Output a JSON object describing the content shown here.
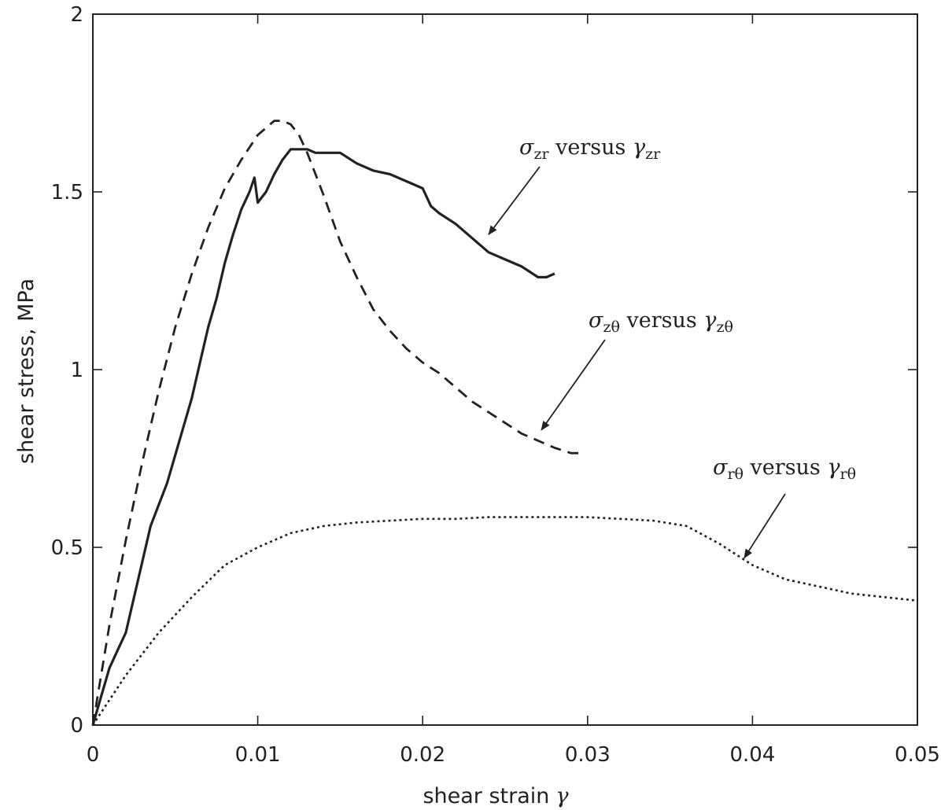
{
  "chart_data": {
    "type": "line",
    "title": "",
    "xlabel": "shear strain",
    "xlabel_symbol": "γ",
    "ylabel": "shear stress, MPa",
    "xlim": [
      0,
      0.05
    ],
    "ylim": [
      0,
      2
    ],
    "x_ticks": [
      0,
      0.01,
      0.02,
      0.03,
      0.04,
      0.05
    ],
    "y_ticks": [
      0,
      0.5,
      1,
      1.5,
      2
    ],
    "x_tick_labels": [
      "0",
      "0.01",
      "0.02",
      "0.03",
      "0.04",
      "0.05"
    ],
    "y_tick_labels": [
      "0",
      "0.5",
      "1",
      "1.5",
      "2"
    ],
    "grid": false,
    "legend": "none",
    "series": [
      {
        "name": "σzr versus γzr",
        "style": "solid",
        "color": "#222222",
        "x": [
          0,
          0.0005,
          0.001,
          0.0015,
          0.002,
          0.0025,
          0.003,
          0.0035,
          0.004,
          0.0045,
          0.005,
          0.0055,
          0.006,
          0.0065,
          0.007,
          0.0075,
          0.008,
          0.0085,
          0.009,
          0.0095,
          0.0098,
          0.01,
          0.0105,
          0.011,
          0.0115,
          0.012,
          0.0125,
          0.013,
          0.0135,
          0.014,
          0.015,
          0.016,
          0.017,
          0.018,
          0.019,
          0.02,
          0.0205,
          0.021,
          0.022,
          0.023,
          0.024,
          0.025,
          0.026,
          0.027,
          0.0275,
          0.028
        ],
        "y": [
          0,
          0.08,
          0.16,
          0.21,
          0.26,
          0.36,
          0.46,
          0.56,
          0.62,
          0.68,
          0.76,
          0.84,
          0.92,
          1.02,
          1.12,
          1.2,
          1.3,
          1.38,
          1.45,
          1.5,
          1.54,
          1.47,
          1.5,
          1.55,
          1.59,
          1.62,
          1.62,
          1.62,
          1.61,
          1.61,
          1.61,
          1.58,
          1.56,
          1.55,
          1.53,
          1.51,
          1.46,
          1.44,
          1.41,
          1.37,
          1.33,
          1.31,
          1.29,
          1.26,
          1.26,
          1.27
        ]
      },
      {
        "name": "σzθ versus γzθ",
        "style": "dashed",
        "color": "#222222",
        "x": [
          0,
          0.001,
          0.002,
          0.003,
          0.004,
          0.005,
          0.006,
          0.007,
          0.008,
          0.009,
          0.01,
          0.011,
          0.0115,
          0.012,
          0.0125,
          0.013,
          0.014,
          0.015,
          0.016,
          0.017,
          0.018,
          0.019,
          0.02,
          0.021,
          0.022,
          0.023,
          0.024,
          0.025,
          0.026,
          0.027,
          0.028,
          0.029,
          0.0296
        ],
        "y": [
          0,
          0.28,
          0.52,
          0.74,
          0.94,
          1.12,
          1.27,
          1.4,
          1.51,
          1.59,
          1.66,
          1.7,
          1.7,
          1.69,
          1.66,
          1.61,
          1.49,
          1.36,
          1.26,
          1.17,
          1.11,
          1.06,
          1.02,
          0.99,
          0.95,
          0.91,
          0.88,
          0.85,
          0.82,
          0.8,
          0.78,
          0.765,
          0.765
        ]
      },
      {
        "name": "σrθ versus γrθ",
        "style": "dotted",
        "color": "#222222",
        "x": [
          0,
          0.002,
          0.004,
          0.006,
          0.008,
          0.01,
          0.012,
          0.014,
          0.016,
          0.018,
          0.02,
          0.022,
          0.024,
          0.026,
          0.028,
          0.03,
          0.032,
          0.034,
          0.036,
          0.038,
          0.04,
          0.042,
          0.044,
          0.046,
          0.048,
          0.05
        ],
        "y": [
          0,
          0.14,
          0.26,
          0.36,
          0.45,
          0.5,
          0.54,
          0.56,
          0.57,
          0.575,
          0.58,
          0.58,
          0.585,
          0.585,
          0.585,
          0.585,
          0.58,
          0.575,
          0.56,
          0.51,
          0.45,
          0.41,
          0.39,
          0.37,
          0.36,
          0.35
        ]
      }
    ],
    "annotations": [
      {
        "text": "σzr versus γzr",
        "sym1": "σ",
        "sub1": "zr",
        "mid": " versus ",
        "sym2": "γ",
        "sub2": "zr",
        "arrow_to": [
          0.024,
          1.38
        ]
      },
      {
        "text": "σzθ versus γzθ",
        "sym1": "σ",
        "sub1": "zθ",
        "mid": " versus ",
        "sym2": "γ",
        "sub2": "zθ",
        "arrow_to": [
          0.0272,
          0.83
        ]
      },
      {
        "text": "σrθ versus γrθ",
        "sym1": "σ",
        "sub1": "rθ",
        "mid": " versus ",
        "sym2": "γ",
        "sub2": "rθ",
        "arrow_to": [
          0.0395,
          0.47
        ]
      }
    ]
  }
}
